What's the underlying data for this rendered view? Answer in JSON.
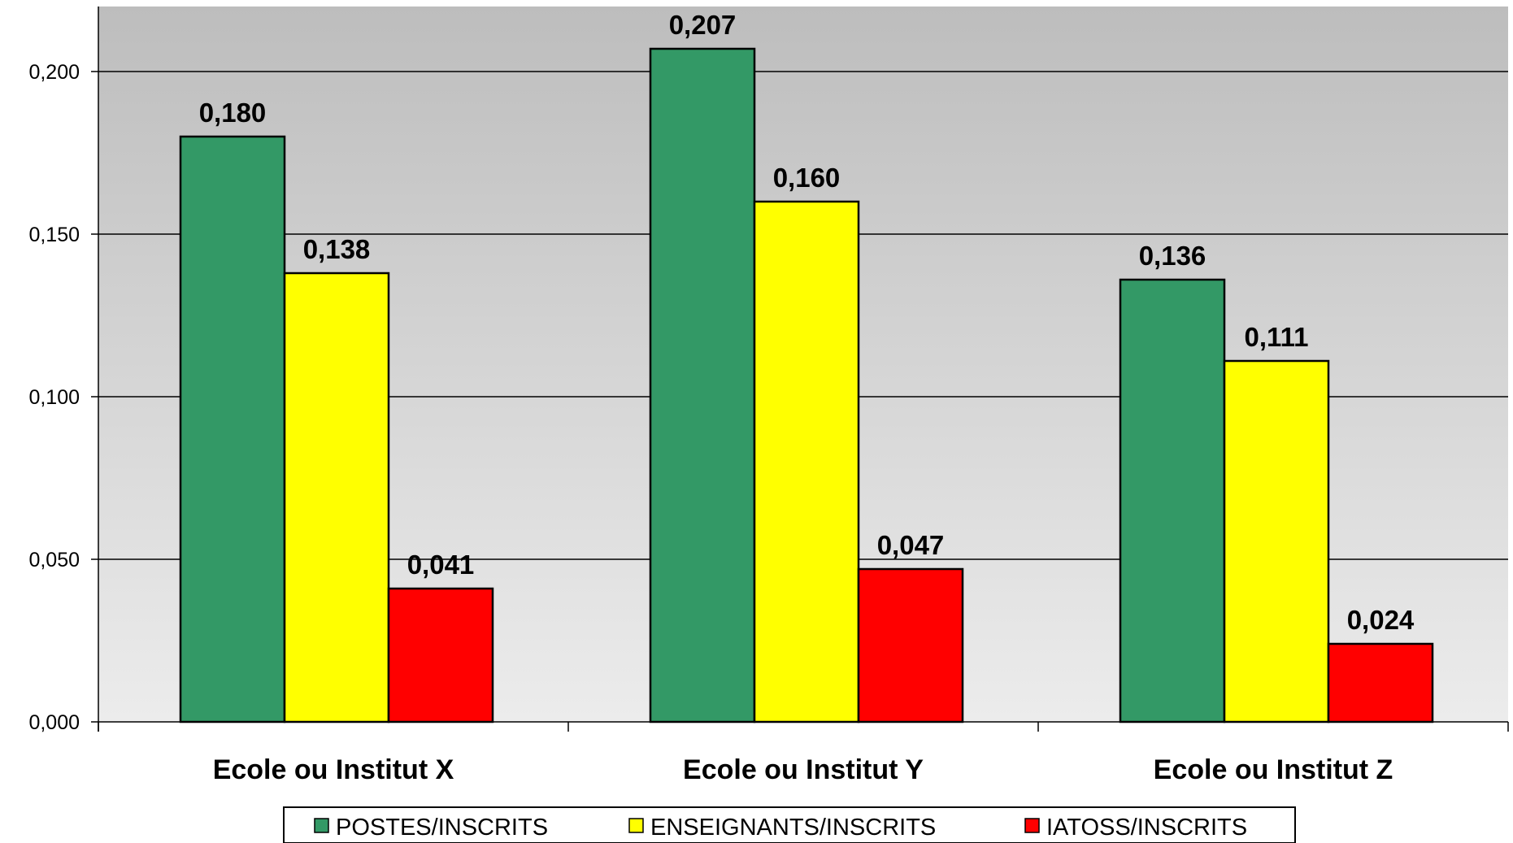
{
  "chart_data": {
    "type": "bar",
    "title": "",
    "xlabel": "",
    "ylabel": "",
    "categories": [
      "Ecole ou Institut X",
      "Ecole ou Institut Y",
      "Ecole ou Institut Z"
    ],
    "series": [
      {
        "name": "POSTES/INSCRITS",
        "color": "#339966",
        "values": [
          0.18,
          0.207,
          0.136
        ],
        "labels": [
          "0,180",
          "0,207",
          "0,136"
        ]
      },
      {
        "name": "ENSEIGNANTS/INSCRITS",
        "color": "#ffff00",
        "values": [
          0.138,
          0.16,
          0.111
        ],
        "labels": [
          "0,138",
          "0,160",
          "0,111"
        ]
      },
      {
        "name": "IATOSS/INSCRITS",
        "color": "#ff0000",
        "values": [
          0.041,
          0.047,
          0.024
        ],
        "labels": [
          "0,041",
          "0,047",
          "0,024"
        ]
      }
    ],
    "ylim": [
      0,
      0.22
    ],
    "yticks": [
      0.0,
      0.05,
      0.1,
      0.15,
      0.2
    ],
    "ytick_labels": [
      "0,000",
      "0,050",
      "0,100",
      "0,150",
      "0,200"
    ],
    "grid": true,
    "legend_position": "bottom",
    "plot_background": "gradient gray (dark top, light bottom)"
  }
}
